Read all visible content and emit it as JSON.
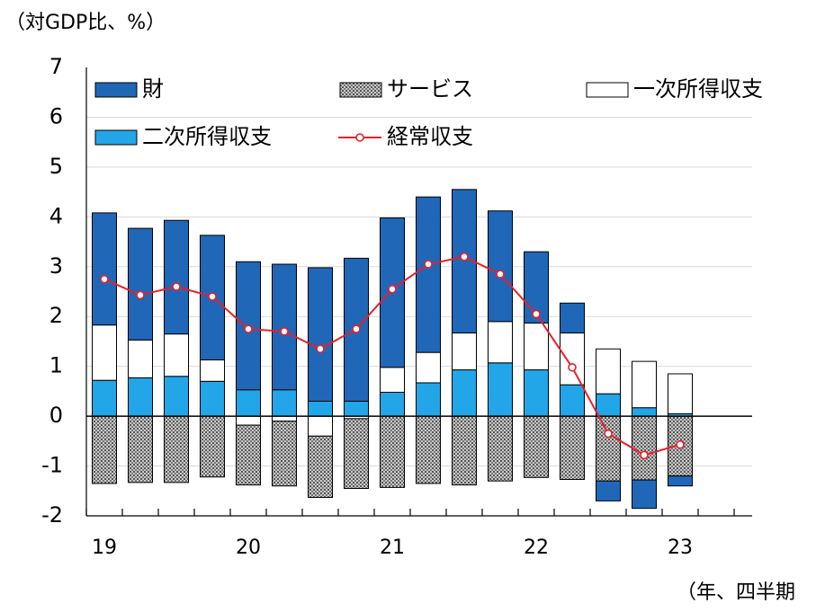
{
  "chart_data": {
    "type": "bar",
    "subtitle": "（対GDP比、%）",
    "x_label": "（年、四半期",
    "categories": [
      "19",
      null,
      null,
      null,
      "20",
      null,
      null,
      null,
      "21",
      null,
      null,
      null,
      "22",
      null,
      null,
      null,
      "23"
    ],
    "series": [
      {
        "name": "財",
        "color": "#2067b8",
        "values": [
          2.25,
          2.24,
          2.28,
          2.5,
          2.57,
          2.52,
          2.68,
          2.87,
          3.0,
          3.12,
          2.88,
          2.22,
          1.43,
          0.6,
          -0.4,
          -0.57,
          -0.2
        ]
      },
      {
        "name": "サービス",
        "color": "#999999",
        "values": [
          -1.35,
          -1.33,
          -1.33,
          -1.22,
          -1.2,
          -1.3,
          -1.23,
          -1.4,
          -1.43,
          -1.35,
          -1.38,
          -1.3,
          -1.23,
          -1.27,
          -1.3,
          -1.28,
          -1.2
        ]
      },
      {
        "name": "一次所得収支",
        "color": "#ffffff",
        "values": [
          1.11,
          0.76,
          0.85,
          0.43,
          -0.18,
          -0.1,
          -0.4,
          -0.05,
          0.5,
          0.61,
          0.74,
          0.83,
          0.94,
          1.04,
          0.9,
          0.93,
          0.8
        ]
      },
      {
        "name": "二次所得収支",
        "color": "#22a6e8",
        "values": [
          0.72,
          0.77,
          0.8,
          0.7,
          0.53,
          0.53,
          0.3,
          0.3,
          0.48,
          0.67,
          0.93,
          1.07,
          0.93,
          0.63,
          0.45,
          0.17,
          0.05
        ]
      },
      {
        "name": "経常収支",
        "type": "line",
        "color": "#e8202a",
        "values": [
          2.75,
          2.43,
          2.6,
          2.4,
          1.75,
          1.7,
          1.35,
          1.75,
          2.55,
          3.05,
          3.2,
          2.85,
          2.05,
          0.98,
          -0.35,
          -0.78,
          -0.57
        ]
      }
    ],
    "ylim": [
      -2,
      7
    ],
    "yticks": [
      -2,
      -1,
      0,
      1,
      2,
      3,
      4,
      5,
      6,
      7
    ],
    "grid": true
  }
}
